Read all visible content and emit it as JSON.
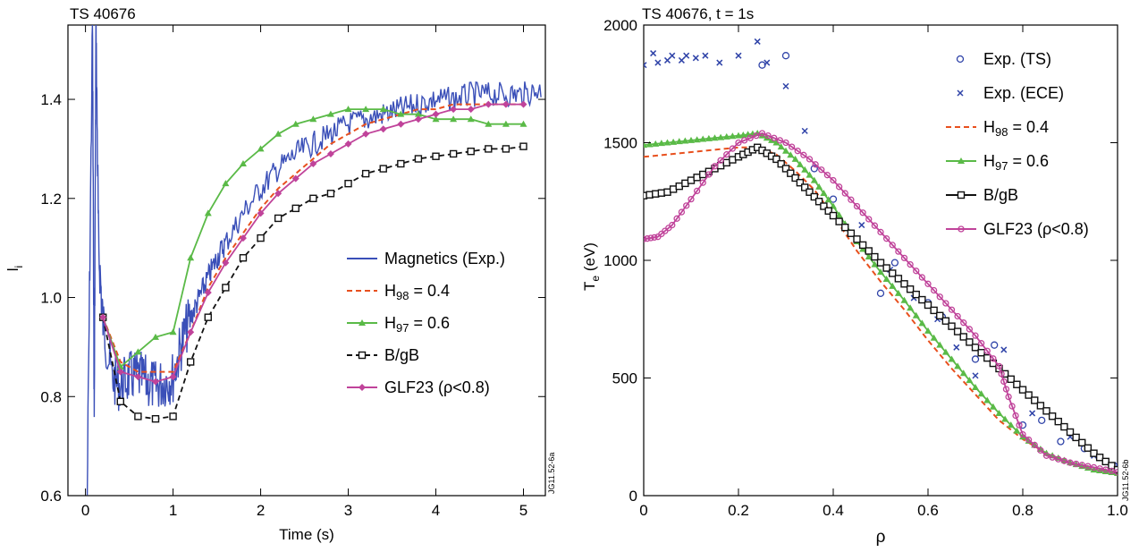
{
  "chart_data": [
    {
      "type": "line",
      "title": "TS 40676",
      "xlabel": "Time (s)",
      "ylabel": "l",
      "ylabel_sub": "i",
      "xlim": [
        -0.2,
        5.25
      ],
      "ylim": [
        0.6,
        1.55
      ],
      "xticks": [
        "0",
        "1",
        "2",
        "3",
        "4",
        "5"
      ],
      "xtick_values": [
        0,
        1,
        2,
        3,
        4,
        5
      ],
      "yticks": [
        "0.6",
        "0.8",
        "1.0",
        "1.2",
        "1.4"
      ],
      "ytick_values": [
        0.6,
        0.8,
        1.0,
        1.2,
        1.4
      ],
      "legend_position": "center-right",
      "figure_id": "JG11.52-6a",
      "series": [
        {
          "name": "Magnetics (Exp.)",
          "legend": {
            "main": "Magnetics (Exp.)"
          },
          "color": "#3a4fb8",
          "style": "noisy",
          "x": [
            0.02,
            0.08,
            0.1,
            0.12,
            0.15,
            0.2,
            0.3,
            0.4,
            0.5,
            0.6,
            0.7,
            0.8,
            0.9,
            1.0,
            1.1,
            1.2,
            1.3,
            1.4,
            1.5,
            1.6,
            1.8,
            2.0,
            2.2,
            2.4,
            2.6,
            2.8,
            3.0,
            3.2,
            3.4,
            3.6,
            3.8,
            4.0,
            4.2,
            4.4,
            4.6,
            4.8,
            5.0,
            5.2
          ],
          "y": [
            0.6,
            1.55,
            0.75,
            1.55,
            1.1,
            0.95,
            0.84,
            0.82,
            0.84,
            0.84,
            0.83,
            0.82,
            0.83,
            0.84,
            0.91,
            0.96,
            1.0,
            1.04,
            1.08,
            1.11,
            1.17,
            1.22,
            1.26,
            1.29,
            1.31,
            1.33,
            1.35,
            1.36,
            1.37,
            1.38,
            1.39,
            1.4,
            1.4,
            1.41,
            1.41,
            1.41,
            1.41,
            1.42
          ]
        },
        {
          "name": "H98 = 0.4",
          "legend": {
            "main": "H",
            "sub": "98",
            "tail": " = 0.4"
          },
          "color": "#e8501e",
          "style": "dashed",
          "x": [
            0.2,
            0.4,
            0.6,
            0.8,
            1.0,
            1.2,
            1.4,
            1.6,
            1.8,
            2.0,
            2.2,
            2.4,
            2.6,
            2.8,
            3.0,
            3.2,
            3.4,
            3.6,
            3.8,
            4.0,
            4.2,
            4.4,
            4.6,
            4.8,
            5.0
          ],
          "y": [
            0.96,
            0.87,
            0.85,
            0.85,
            0.85,
            0.93,
            1.02,
            1.08,
            1.13,
            1.18,
            1.22,
            1.25,
            1.28,
            1.31,
            1.33,
            1.35,
            1.36,
            1.37,
            1.38,
            1.38,
            1.39,
            1.39,
            1.39,
            1.39,
            1.39
          ]
        },
        {
          "name": "H97 = 0.6",
          "legend": {
            "main": "H",
            "sub": "97",
            "tail": " = 0.6"
          },
          "color": "#5aba47",
          "style": "triangle",
          "x": [
            0.2,
            0.4,
            0.6,
            0.8,
            1.0,
            1.2,
            1.4,
            1.6,
            1.8,
            2.0,
            2.2,
            2.4,
            2.6,
            2.8,
            3.0,
            3.2,
            3.4,
            3.6,
            3.8,
            4.0,
            4.2,
            4.4,
            4.6,
            4.8,
            5.0
          ],
          "y": [
            0.96,
            0.86,
            0.89,
            0.92,
            0.93,
            1.08,
            1.17,
            1.23,
            1.27,
            1.3,
            1.33,
            1.35,
            1.36,
            1.37,
            1.38,
            1.38,
            1.38,
            1.37,
            1.37,
            1.36,
            1.36,
            1.36,
            1.35,
            1.35,
            1.35
          ]
        },
        {
          "name": "B/gB",
          "legend": {
            "main": "B/gB"
          },
          "color": "#111111",
          "style": "square",
          "x": [
            0.2,
            0.4,
            0.6,
            0.8,
            1.0,
            1.2,
            1.4,
            1.6,
            1.8,
            2.0,
            2.2,
            2.4,
            2.6,
            2.8,
            3.0,
            3.2,
            3.4,
            3.6,
            3.8,
            4.0,
            4.2,
            4.4,
            4.6,
            4.8,
            5.0
          ],
          "y": [
            0.96,
            0.79,
            0.76,
            0.755,
            0.76,
            0.87,
            0.96,
            1.02,
            1.08,
            1.12,
            1.16,
            1.18,
            1.2,
            1.21,
            1.23,
            1.25,
            1.26,
            1.27,
            1.28,
            1.285,
            1.29,
            1.295,
            1.3,
            1.3,
            1.305
          ]
        },
        {
          "name": "GLF23 (ρ<0.8)",
          "legend": {
            "main": "GLF23 (ρ<0.8)"
          },
          "color": "#c0439a",
          "style": "diamond",
          "x": [
            0.2,
            0.4,
            0.6,
            0.8,
            1.0,
            1.2,
            1.4,
            1.6,
            1.8,
            2.0,
            2.2,
            2.4,
            2.6,
            2.8,
            3.0,
            3.2,
            3.4,
            3.6,
            3.8,
            4.0,
            4.2,
            4.4,
            4.6,
            4.8,
            5.0
          ],
          "y": [
            0.96,
            0.85,
            0.84,
            0.83,
            0.84,
            0.93,
            1.01,
            1.07,
            1.12,
            1.17,
            1.21,
            1.24,
            1.27,
            1.29,
            1.31,
            1.33,
            1.34,
            1.35,
            1.36,
            1.37,
            1.38,
            1.38,
            1.39,
            1.39,
            1.39
          ]
        }
      ]
    },
    {
      "type": "line",
      "title": "TS 40676, t = 1s",
      "xlabel": "ρ",
      "ylabel": "T",
      "ylabel_sub": "e",
      "ylabel_tail": " (eV)",
      "xlim": [
        0,
        1
      ],
      "ylim": [
        0,
        2000
      ],
      "xticks": [
        "0",
        "0.2",
        "0.4",
        "0.6",
        "0.8",
        "1.0"
      ],
      "xtick_values": [
        0,
        0.2,
        0.4,
        0.6,
        0.8,
        1.0
      ],
      "yticks": [
        "0",
        "500",
        "1000",
        "1500",
        "2000"
      ],
      "ytick_values": [
        0,
        500,
        1000,
        1500,
        2000
      ],
      "legend_position": "top-right",
      "figure_id": "JG11.52-6b",
      "series": [
        {
          "name": "Exp. (TS)",
          "legend": {
            "main": "Exp. (TS)"
          },
          "color": "#2f43a8",
          "style": "circle-scatter",
          "x": [
            0.25,
            0.3,
            0.36,
            0.4,
            0.5,
            0.53,
            0.6,
            0.63,
            0.7,
            0.74,
            0.8,
            0.84,
            0.88,
            0.93
          ],
          "y": [
            1830,
            1870,
            1390,
            1260,
            860,
            990,
            820,
            760,
            580,
            640,
            300,
            320,
            230,
            200
          ]
        },
        {
          "name": "Exp. (ECE)",
          "legend": {
            "main": "Exp. (ECE)"
          },
          "color": "#2f43a8",
          "style": "x-scatter",
          "x": [
            0.0,
            0.02,
            0.03,
            0.05,
            0.06,
            0.08,
            0.09,
            0.11,
            0.13,
            0.16,
            0.2,
            0.24,
            0.26,
            0.3,
            0.34,
            0.46,
            0.52,
            0.57,
            0.62,
            0.66,
            0.7,
            0.76,
            0.82,
            0.9,
            0.95,
            1.0
          ],
          "y": [
            1830,
            1880,
            1840,
            1850,
            1870,
            1850,
            1870,
            1860,
            1870,
            1840,
            1870,
            1930,
            1840,
            1740,
            1550,
            1150,
            960,
            840,
            750,
            630,
            510,
            620,
            350,
            250,
            170,
            130
          ]
        },
        {
          "name": "H98 = 0.4",
          "legend": {
            "main": "H",
            "sub": "98",
            "tail": " = 0.4"
          },
          "color": "#e8501e",
          "style": "dashed",
          "x": [
            0,
            0.05,
            0.1,
            0.15,
            0.2,
            0.24,
            0.28,
            0.32,
            0.36,
            0.4,
            0.45,
            0.5,
            0.55,
            0.6,
            0.65,
            0.7,
            0.75,
            0.8,
            0.85,
            0.9,
            0.95,
            1.0
          ],
          "y": [
            1440,
            1450,
            1460,
            1470,
            1480,
            1480,
            1450,
            1380,
            1300,
            1190,
            1040,
            910,
            790,
            660,
            540,
            430,
            320,
            240,
            180,
            140,
            110,
            100
          ]
        },
        {
          "name": "H97 = 0.6",
          "legend": {
            "main": "H",
            "sub": "97",
            "tail": " = 0.6"
          },
          "color": "#5aba47",
          "style": "triangle",
          "x": [
            0,
            0.05,
            0.1,
            0.15,
            0.2,
            0.24,
            0.28,
            0.32,
            0.36,
            0.4,
            0.45,
            0.5,
            0.55,
            0.6,
            0.65,
            0.7,
            0.75,
            0.8,
            0.85,
            0.9,
            0.95,
            1.0
          ],
          "y": [
            1490,
            1500,
            1510,
            1520,
            1530,
            1540,
            1500,
            1430,
            1340,
            1230,
            1080,
            950,
            830,
            700,
            580,
            460,
            350,
            250,
            180,
            140,
            110,
            95
          ]
        },
        {
          "name": "B/gB",
          "legend": {
            "main": "B/gB"
          },
          "color": "#111111",
          "style": "square",
          "x": [
            0,
            0.05,
            0.1,
            0.15,
            0.2,
            0.24,
            0.28,
            0.32,
            0.36,
            0.4,
            0.45,
            0.5,
            0.55,
            0.6,
            0.65,
            0.7,
            0.75,
            0.8,
            0.85,
            0.9,
            0.95,
            1.0
          ],
          "y": [
            1275,
            1290,
            1340,
            1390,
            1440,
            1480,
            1430,
            1350,
            1270,
            1190,
            1090,
            990,
            900,
            810,
            720,
            630,
            540,
            450,
            360,
            270,
            180,
            110
          ]
        },
        {
          "name": "GLF23 (ρ<0.8)",
          "legend": {
            "main": "GLF23 (ρ<0.8)"
          },
          "color": "#c0439a",
          "style": "circle",
          "x": [
            0,
            0.03,
            0.06,
            0.1,
            0.15,
            0.2,
            0.25,
            0.3,
            0.35,
            0.4,
            0.45,
            0.5,
            0.55,
            0.6,
            0.65,
            0.7,
            0.75,
            0.77,
            0.8,
            0.85,
            0.9,
            0.95,
            1.0
          ],
          "y": [
            1090,
            1100,
            1150,
            1260,
            1400,
            1500,
            1540,
            1500,
            1430,
            1340,
            1230,
            1120,
            1010,
            900,
            790,
            680,
            550,
            420,
            260,
            170,
            140,
            120,
            100
          ]
        }
      ]
    }
  ]
}
